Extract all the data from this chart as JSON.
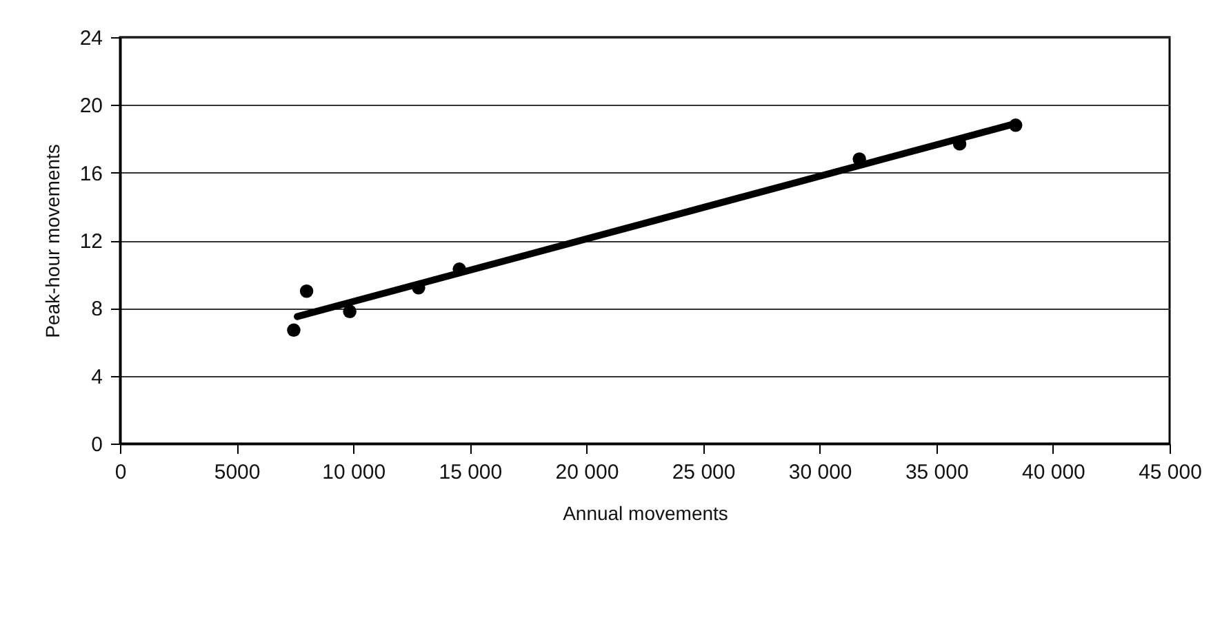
{
  "chart_data": {
    "type": "scatter",
    "xlabel": "Annual movements",
    "ylabel": "Peak-hour movements",
    "xlim": [
      0,
      45000
    ],
    "ylim": [
      0,
      24
    ],
    "xticks": [
      0,
      5000,
      {
        "value": 10000,
        "label": "10 000"
      },
      {
        "value": 15000,
        "label": "15 000"
      },
      {
        "value": 20000,
        "label": "20 000"
      },
      {
        "value": 25000,
        "label": "25 000"
      },
      {
        "value": 30000,
        "label": "30 000"
      },
      {
        "value": 35000,
        "label": "35 000"
      },
      {
        "value": 40000,
        "label": "40 000"
      },
      {
        "value": 45000,
        "label": "45 000"
      }
    ],
    "yticks": [
      0,
      4,
      8,
      12,
      16,
      20,
      24
    ],
    "grid": "y",
    "series": [
      {
        "color": "#000000",
        "marker": "circle",
        "x": [
          7450,
          8000,
          9850,
          12800,
          14550,
          31700,
          36000,
          38400
        ],
        "values": [
          6.7,
          9.0,
          7.8,
          9.2,
          10.3,
          16.8,
          17.7,
          18.8
        ]
      },
      {
        "type": "line",
        "color": "#000000",
        "line_style": "solid",
        "x": [
          7600,
          38400
        ],
        "values": [
          7.5,
          18.9
        ]
      }
    ]
  }
}
